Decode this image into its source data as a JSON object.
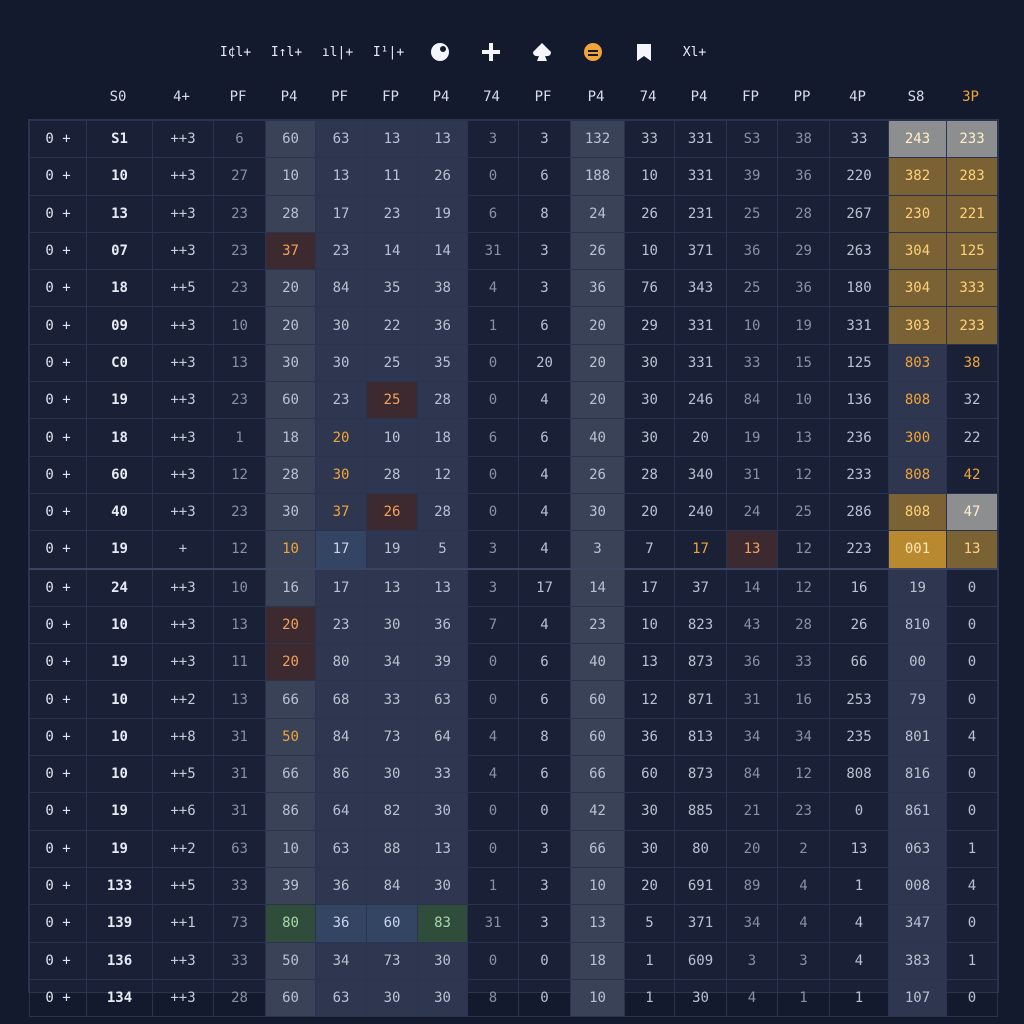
{
  "toolbar": [
    {
      "label": "I¢l+",
      "icon": ""
    },
    {
      "label": "I↑l+",
      "icon": ""
    },
    {
      "label": "ıl|+",
      "icon": ""
    },
    {
      "label": "I¹|+",
      "icon": ""
    },
    {
      "label": "",
      "icon": "circle-dot-icon"
    },
    {
      "label": "",
      "icon": "plus-icon"
    },
    {
      "label": "",
      "icon": "spade-icon"
    },
    {
      "label": "",
      "icon": "coin-icon"
    },
    {
      "label": "",
      "icon": "bookmark-icon"
    },
    {
      "label": "Xl+",
      "icon": ""
    }
  ],
  "columns": [
    "",
    "S0",
    "4+",
    "PF",
    "P4",
    "PF",
    "FP",
    "P4",
    "74",
    "PF",
    "P4",
    "74",
    "P4",
    "FP",
    "PP",
    "4P",
    "S8",
    "3P"
  ],
  "accent": "#f0a53a",
  "rows": [
    [
      "0 +",
      "S1",
      "++3",
      "6",
      "60",
      "63",
      "13",
      "13",
      "3",
      "3",
      "132",
      "33",
      "331",
      "S3",
      "38",
      "33",
      "243",
      "233"
    ],
    [
      "0 +",
      "10",
      "++3",
      "27",
      "10",
      "13",
      "11",
      "26",
      "0",
      "6",
      "188",
      "10",
      "331",
      "39",
      "36",
      "220",
      "382",
      "283"
    ],
    [
      "0 +",
      "13",
      "++3",
      "23",
      "28",
      "17",
      "23",
      "19",
      "6",
      "8",
      "24",
      "26",
      "231",
      "25",
      "28",
      "267",
      "230",
      "221"
    ],
    [
      "0 +",
      "07",
      "++3",
      "23",
      "37",
      "23",
      "14",
      "14",
      "31",
      "3",
      "26",
      "10",
      "371",
      "36",
      "29",
      "263",
      "304",
      "125"
    ],
    [
      "0 +",
      "18",
      "++5",
      "23",
      "20",
      "84",
      "35",
      "38",
      "4",
      "3",
      "36",
      "76",
      "343",
      "25",
      "36",
      "180",
      "304",
      "333"
    ],
    [
      "0 +",
      "09",
      "++3",
      "10",
      "20",
      "30",
      "22",
      "36",
      "1",
      "6",
      "20",
      "29",
      "331",
      "10",
      "19",
      "331",
      "303",
      "233"
    ],
    [
      "0 +",
      "C0",
      "++3",
      "13",
      "30",
      "30",
      "25",
      "35",
      "0",
      "20",
      "20",
      "30",
      "331",
      "33",
      "15",
      "125",
      "803",
      "38"
    ],
    [
      "0 +",
      "19",
      "++3",
      "23",
      "60",
      "23",
      "25",
      "28",
      "0",
      "4",
      "20",
      "30",
      "246",
      "84",
      "10",
      "136",
      "808",
      "32"
    ],
    [
      "0 +",
      "18",
      "++3",
      "1",
      "18",
      "20",
      "10",
      "18",
      "6",
      "6",
      "40",
      "30",
      "20",
      "19",
      "13",
      "236",
      "300",
      "22"
    ],
    [
      "0 +",
      "60",
      "++3",
      "12",
      "28",
      "30",
      "28",
      "12",
      "0",
      "4",
      "26",
      "28",
      "340",
      "31",
      "12",
      "233",
      "808",
      "42"
    ],
    [
      "0 +",
      "40",
      "++3",
      "23",
      "30",
      "37",
      "26",
      "28",
      "0",
      "4",
      "30",
      "20",
      "240",
      "24",
      "25",
      "286",
      "808",
      "47"
    ],
    [
      "0 +",
      "19",
      "+",
      "12",
      "10",
      "17",
      "19",
      "5",
      "3",
      "4",
      "3",
      "7",
      "17",
      "13",
      "12",
      "223",
      "001",
      "13"
    ],
    [
      "0 +",
      "24",
      "++3",
      "10",
      "16",
      "17",
      "13",
      "13",
      "3",
      "17",
      "14",
      "17",
      "37",
      "14",
      "12",
      "16",
      "19",
      "0"
    ],
    [
      "0 +",
      "10",
      "++3",
      "13",
      "20",
      "23",
      "30",
      "36",
      "7",
      "4",
      "23",
      "10",
      "823",
      "43",
      "28",
      "26",
      "810",
      "0"
    ],
    [
      "0 +",
      "19",
      "++3",
      "11",
      "20",
      "80",
      "34",
      "39",
      "0",
      "6",
      "40",
      "13",
      "873",
      "36",
      "33",
      "66",
      "00",
      "0"
    ],
    [
      "0 +",
      "10",
      "++2",
      "13",
      "66",
      "68",
      "33",
      "63",
      "0",
      "6",
      "60",
      "12",
      "871",
      "31",
      "16",
      "253",
      "79",
      "0"
    ],
    [
      "0 +",
      "10",
      "++8",
      "31",
      "50",
      "84",
      "73",
      "64",
      "4",
      "8",
      "60",
      "36",
      "813",
      "34",
      "34",
      "235",
      "801",
      "4"
    ],
    [
      "0 +",
      "10",
      "++5",
      "31",
      "66",
      "86",
      "30",
      "33",
      "4",
      "6",
      "66",
      "60",
      "873",
      "84",
      "12",
      "808",
      "816",
      "0"
    ],
    [
      "0 +",
      "19",
      "++6",
      "31",
      "86",
      "64",
      "82",
      "30",
      "0",
      "0",
      "42",
      "30",
      "885",
      "21",
      "23",
      "0",
      "861",
      "0"
    ],
    [
      "0 +",
      "19",
      "++2",
      "63",
      "10",
      "63",
      "88",
      "13",
      "0",
      "3",
      "66",
      "30",
      "80",
      "20",
      "2",
      "13",
      "063",
      "1"
    ],
    [
      "0 +",
      "133",
      "++5",
      "33",
      "39",
      "36",
      "84",
      "30",
      "1",
      "3",
      "10",
      "20",
      "691",
      "89",
      "4",
      "1",
      "008",
      "4"
    ],
    [
      "0 +",
      "139",
      "++1",
      "73",
      "80",
      "36",
      "60",
      "83",
      "31",
      "3",
      "13",
      "5",
      "371",
      "34",
      "4",
      "4",
      "347",
      "0"
    ],
    [
      "0 +",
      "136",
      "++3",
      "33",
      "50",
      "34",
      "73",
      "30",
      "0",
      "0",
      "18",
      "1",
      "609",
      "3",
      "3",
      "4",
      "383",
      "1"
    ],
    [
      "0 +",
      "134",
      "++3",
      "28",
      "60",
      "63",
      "30",
      "30",
      "8",
      "0",
      "10",
      "1",
      "30",
      "4",
      "1",
      "1",
      "107",
      "0"
    ]
  ]
}
